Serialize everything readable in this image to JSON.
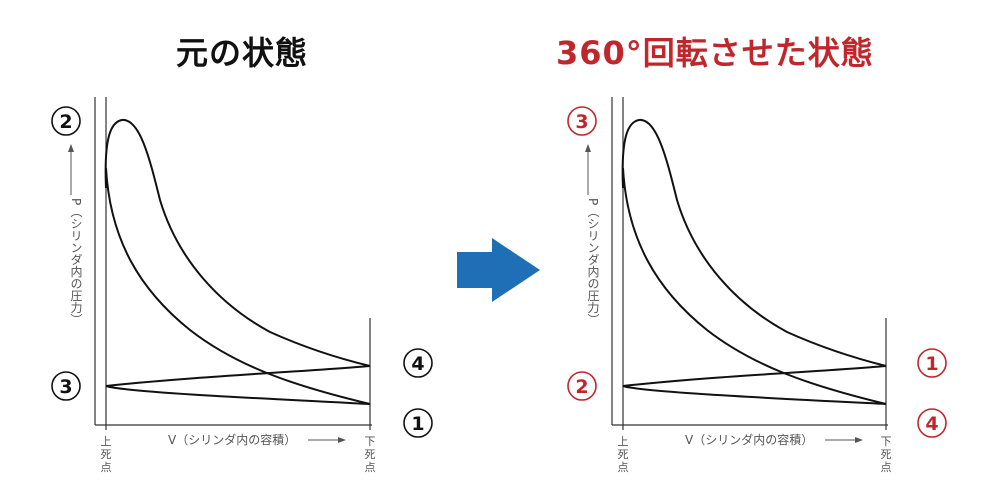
{
  "colors": {
    "black": "#111111",
    "red": "#c0272d",
    "arrow": "#1f6fb6",
    "line": "#333333"
  },
  "left_panel": {
    "title": "元の状態",
    "labels": {
      "top": "2",
      "middle_left": "3",
      "middle_right": "4",
      "bottom_right": "1"
    }
  },
  "right_panel": {
    "title": "360°回転させた状態",
    "labels": {
      "top": "3",
      "middle_left": "2",
      "middle_right": "1",
      "bottom_right": "4"
    }
  },
  "axis": {
    "p_label": "P（シリンダ内の圧力）",
    "v_label": "V（シリンダ内の容積）",
    "tdc_chars": [
      "上",
      "死",
      "点"
    ],
    "bdc_chars": [
      "下",
      "死",
      "点"
    ]
  }
}
